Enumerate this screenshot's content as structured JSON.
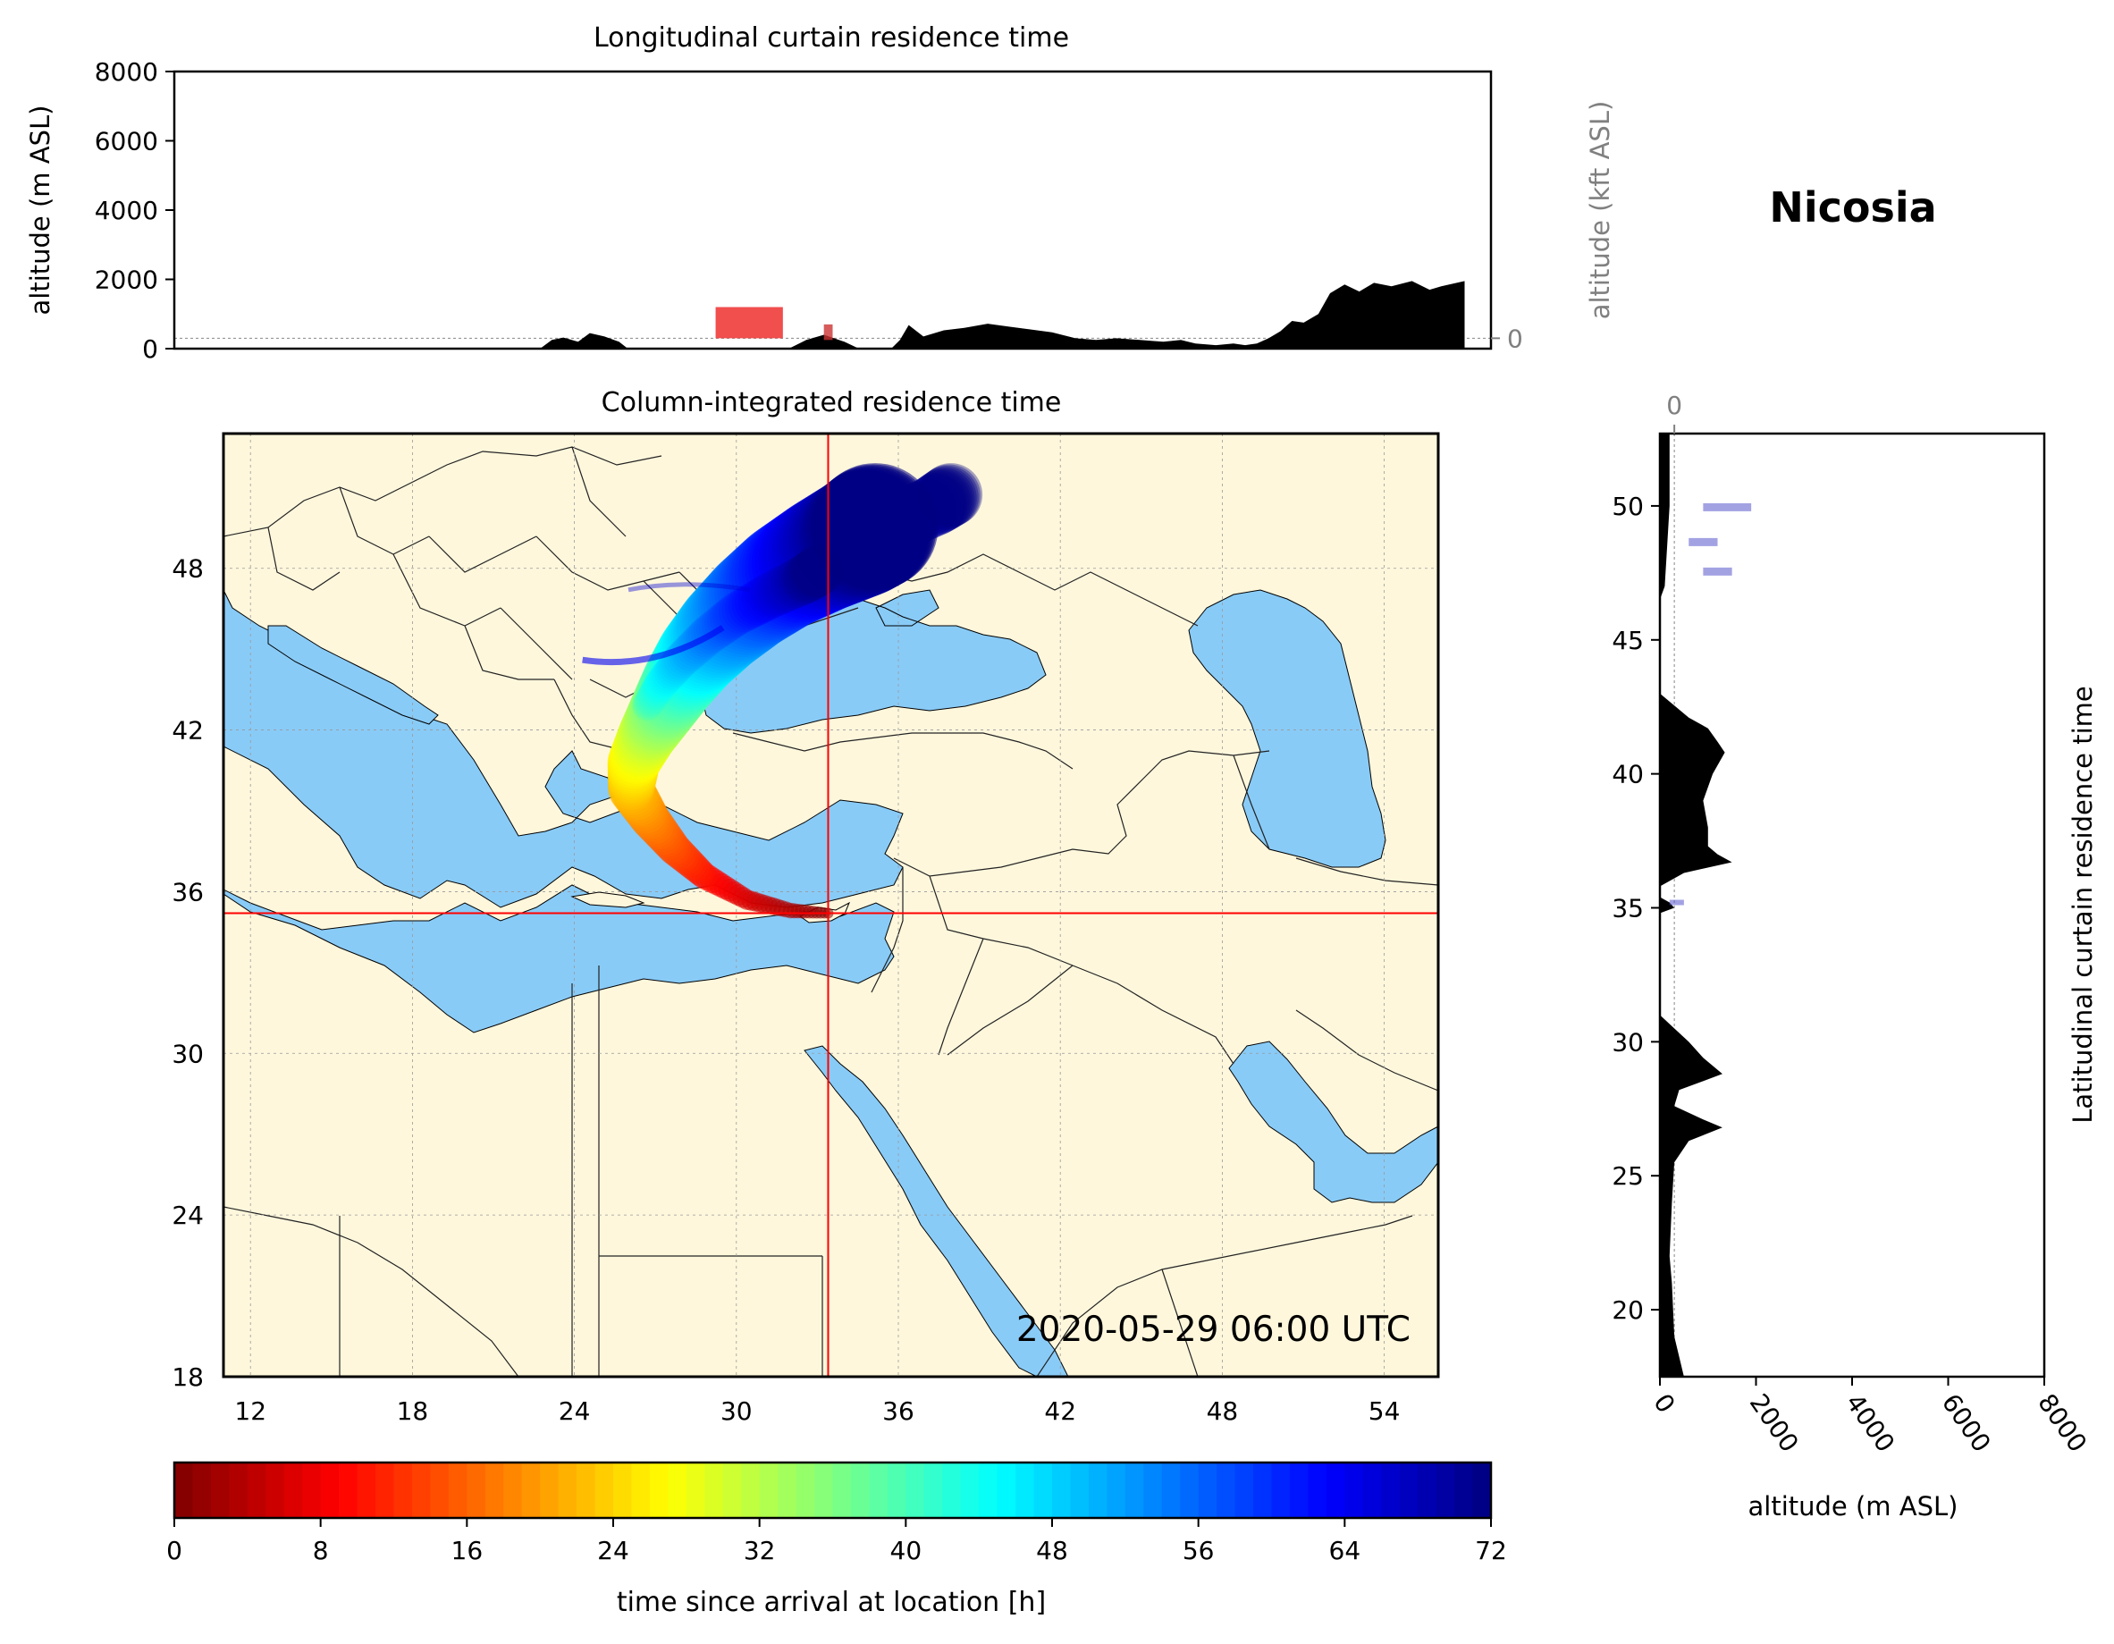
{
  "chart_data": [
    {
      "type": "area",
      "title": "Longitudinal curtain residence time",
      "ylabel": "altitude (m ASL)",
      "ylabel_right": "altitude (kft ASL)",
      "ylim": [
        0,
        8000
      ],
      "yticks": [
        "0",
        "2000",
        "4000",
        "6000",
        "8000"
      ],
      "yticks_right": [
        "0",
        "50",
        "100"
      ],
      "xlim": [
        11,
        56
      ],
      "terrain_color": "#000000",
      "terrain": {
        "x": [
          11,
          23.5,
          23.9,
          24.3,
          24.8,
          25.2,
          25.7,
          26.2,
          26.5,
          26.8,
          29,
          30,
          31,
          32,
          32.6,
          33.2,
          33.9,
          34.4,
          35.2,
          35.5,
          35.8,
          36.1,
          36.6,
          37.3,
          38,
          38.8,
          39.5,
          40.2,
          41,
          41.8,
          42.5,
          43.2,
          44,
          44.8,
          45.4,
          45.9,
          46.6,
          47.2,
          47.6,
          48,
          48.4,
          48.8,
          49.2,
          49.6,
          50.1,
          50.5,
          51,
          51.5,
          52,
          52.6,
          53.3,
          53.9,
          54.3,
          55.1,
          55.1,
          56
        ],
        "y": [
          0,
          0,
          250,
          320,
          200,
          450,
          350,
          200,
          0,
          0,
          0,
          0,
          0,
          0,
          250,
          400,
          200,
          0,
          0,
          0,
          250,
          680,
          350,
          530,
          600,
          720,
          640,
          560,
          470,
          300,
          250,
          300,
          250,
          200,
          250,
          150,
          100,
          150,
          100,
          150,
          300,
          500,
          800,
          750,
          1000,
          1600,
          1850,
          1650,
          1900,
          1800,
          1950,
          1700,
          1800,
          1950,
          0,
          0
        ]
      },
      "highlight": [
        {
          "color": "#ee2222",
          "x": [
            29.5,
            31.8
          ],
          "y": [
            300,
            1200
          ]
        },
        {
          "color": "#cc3333",
          "x": [
            33.2,
            33.5
          ],
          "y": [
            250,
            700
          ]
        }
      ]
    },
    {
      "type": "heatmap",
      "title": "Column-integrated residence time",
      "xticks": [
        "12",
        "18",
        "24",
        "30",
        "36",
        "42",
        "48",
        "54"
      ],
      "yticks": [
        "18",
        "24",
        "30",
        "36",
        "42",
        "48"
      ],
      "xlim": [
        11,
        56
      ],
      "ylim": [
        18,
        53
      ],
      "location_lon": 33.4,
      "location_lat": 35.2,
      "crosshair_color": "#ff0000",
      "timestamp": "2020-05-29 06:00 UTC",
      "land_color": "#fef7dc",
      "sea_color": "#89cbf7",
      "trajectory": [
        {
          "lon": 33.4,
          "lat": 35.2,
          "h": 0
        },
        {
          "lon": 32.0,
          "lat": 35.3,
          "h": 3
        },
        {
          "lon": 30.4,
          "lat": 35.7,
          "h": 6
        },
        {
          "lon": 28.8,
          "lat": 36.6,
          "h": 10
        },
        {
          "lon": 27.7,
          "lat": 37.6,
          "h": 14
        },
        {
          "lon": 26.8,
          "lat": 38.7,
          "h": 18
        },
        {
          "lon": 26.1,
          "lat": 39.8,
          "h": 22
        },
        {
          "lon": 26.2,
          "lat": 40.8,
          "h": 26
        },
        {
          "lon": 26.7,
          "lat": 41.8,
          "h": 30
        },
        {
          "lon": 27.3,
          "lat": 42.8,
          "h": 35
        },
        {
          "lon": 27.9,
          "lat": 43.8,
          "h": 40
        },
        {
          "lon": 28.6,
          "lat": 44.8,
          "h": 45
        },
        {
          "lon": 29.5,
          "lat": 45.8,
          "h": 50
        },
        {
          "lon": 30.6,
          "lat": 46.8,
          "h": 55
        },
        {
          "lon": 31.8,
          "lat": 47.7,
          "h": 60
        },
        {
          "lon": 33.2,
          "lat": 48.5,
          "h": 65
        },
        {
          "lon": 34.6,
          "lat": 49.2,
          "h": 70
        },
        {
          "lon": 35.2,
          "lat": 49.6,
          "h": 72
        }
      ]
    },
    {
      "type": "area",
      "title": "Nicosia",
      "ylabel": "Latitudinal curtain residence time",
      "xlabel": "altitude (m ASL)",
      "xticks": [
        "0",
        "2000",
        "4000",
        "6000",
        "8000"
      ],
      "xticks_top": [
        "0",
        "50",
        "100"
      ],
      "yticks": [
        "20",
        "25",
        "30",
        "35",
        "40",
        "45",
        "50"
      ],
      "xlim": [
        0,
        8000
      ],
      "ylim": [
        17.5,
        52.7
      ],
      "terrain": {
        "lat": [
          17.5,
          19,
          21,
          22,
          24,
          25.5,
          26.3,
          26.8,
          27.1,
          27.6,
          28.2,
          28.8,
          29.4,
          30,
          30.5,
          31,
          32,
          34.8,
          35.0,
          35.2,
          35.4,
          35.8,
          36.3,
          36.7,
          37.0,
          37.3,
          38,
          39,
          40,
          40.8,
          41.2,
          41.7,
          42.1,
          43,
          46.5,
          47,
          50,
          52.7
        ],
        "alt": [
          500,
          300,
          250,
          200,
          250,
          300,
          600,
          1300,
          900,
          300,
          400,
          1300,
          900,
          600,
          300,
          0,
          0,
          0,
          300,
          200,
          0,
          0,
          500,
          1500,
          1200,
          1000,
          1000,
          900,
          1100,
          1350,
          1200,
          1000,
          600,
          0,
          0,
          100,
          200,
          200
        ]
      },
      "highlight_color": "#5555cc",
      "highlight": [
        {
          "lat": [
            49.8,
            50.1
          ],
          "alt": [
            900,
            1900
          ]
        },
        {
          "lat": [
            48.5,
            48.8
          ],
          "alt": [
            600,
            1200
          ]
        },
        {
          "lat": [
            47.4,
            47.7
          ],
          "alt": [
            900,
            1500
          ]
        },
        {
          "lat": [
            35.1,
            35.3
          ],
          "alt": [
            200,
            500
          ]
        }
      ]
    },
    {
      "type": "colorbar",
      "label": "time since arrival at location [h]",
      "ticks": [
        "0",
        "8",
        "16",
        "24",
        "32",
        "40",
        "48",
        "56",
        "64",
        "72"
      ],
      "range": [
        0,
        72
      ],
      "colormap": "jet_reversed"
    }
  ]
}
